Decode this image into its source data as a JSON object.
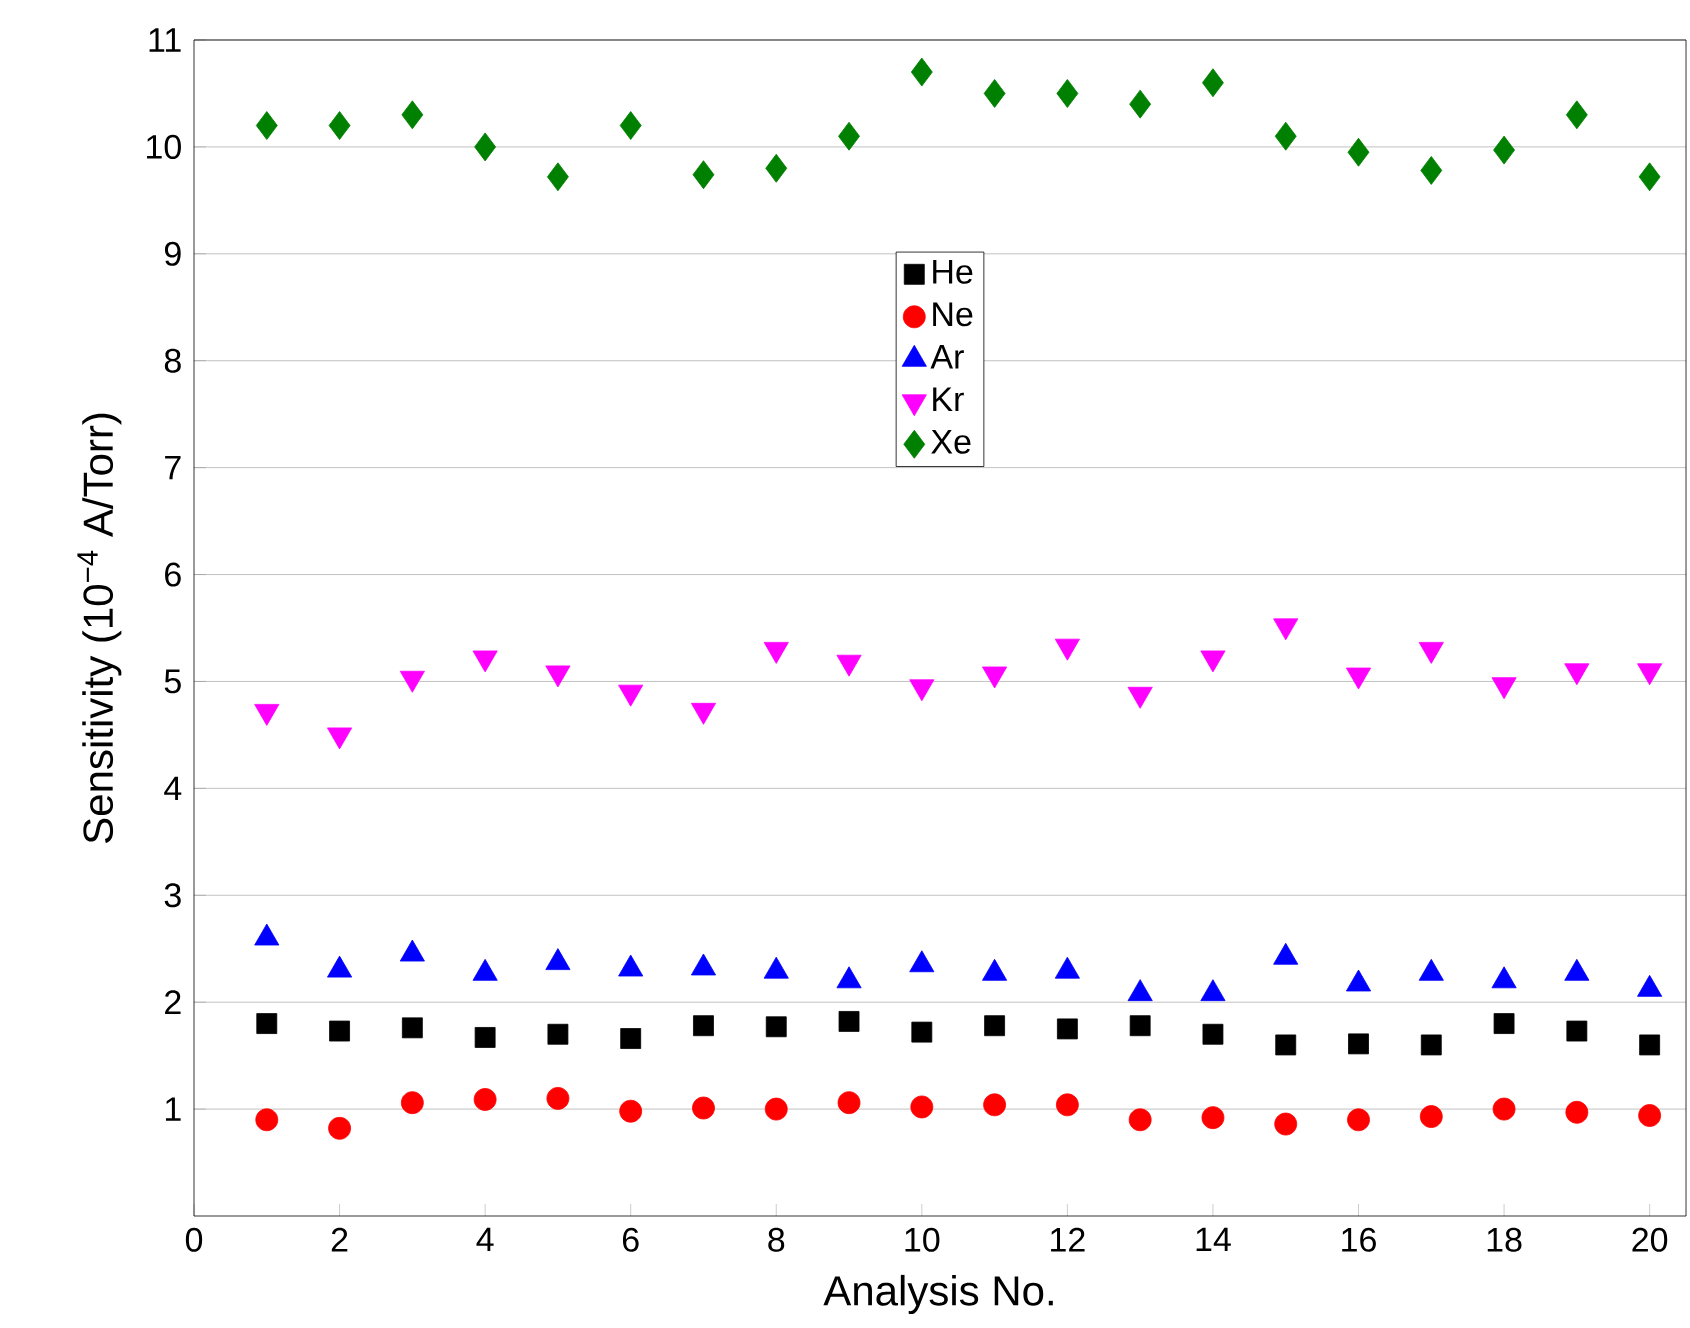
{
  "chart_data": {
    "type": "scatter",
    "xlabel": "Analysis No.",
    "ylabel": "Sensitivity (10$^{−4}$ A/Torr)",
    "x": [
      1,
      2,
      3,
      4,
      5,
      6,
      7,
      8,
      9,
      10,
      11,
      12,
      13,
      14,
      15,
      16,
      17,
      18,
      19,
      20
    ],
    "xlim": [
      0,
      20.5
    ],
    "xticks": [
      0,
      2,
      4,
      6,
      8,
      10,
      12,
      14,
      16,
      18,
      20
    ],
    "ylim": [
      0,
      11
    ],
    "yticks": [
      1,
      2,
      3,
      4,
      5,
      6,
      7,
      8,
      9,
      10,
      11
    ],
    "grid": "y",
    "legend": "top",
    "series": [
      {
        "name": "He",
        "color": "#000000",
        "marker": "square",
        "values": [
          1.8,
          1.73,
          1.76,
          1.67,
          1.7,
          1.66,
          1.78,
          1.77,
          1.82,
          1.72,
          1.78,
          1.75,
          1.78,
          1.7,
          1.6,
          1.61,
          1.6,
          1.8,
          1.73,
          1.6
        ]
      },
      {
        "name": "Ne",
        "color": "#ff0000",
        "marker": "circle",
        "values": [
          0.9,
          0.82,
          1.06,
          1.09,
          1.1,
          0.98,
          1.01,
          1.0,
          1.06,
          1.02,
          1.04,
          1.04,
          0.9,
          0.92,
          0.86,
          0.9,
          0.93,
          1.0,
          0.97,
          0.94
        ]
      },
      {
        "name": "Ar",
        "color": "#0000ff",
        "marker": "triangle",
        "values": [
          2.6,
          2.3,
          2.45,
          2.27,
          2.37,
          2.31,
          2.32,
          2.29,
          2.2,
          2.35,
          2.27,
          2.29,
          2.08,
          2.08,
          2.42,
          2.17,
          2.27,
          2.2,
          2.27,
          2.12
        ]
      },
      {
        "name": "Kr",
        "color": "#ff00ff",
        "marker": "triangle-down",
        "values": [
          4.72,
          4.5,
          5.03,
          5.22,
          5.08,
          4.9,
          4.73,
          5.3,
          5.18,
          4.95,
          5.07,
          5.33,
          4.88,
          5.22,
          5.52,
          5.06,
          5.3,
          4.97,
          5.1,
          5.1
        ]
      },
      {
        "name": "Xe",
        "color": "#008000",
        "marker": "diamond",
        "values": [
          10.2,
          10.2,
          10.3,
          10.0,
          9.72,
          10.2,
          9.74,
          9.8,
          10.1,
          10.7,
          10.5,
          10.5,
          10.4,
          10.6,
          10.1,
          9.95,
          9.78,
          9.97,
          10.3,
          9.72
        ]
      }
    ]
  }
}
